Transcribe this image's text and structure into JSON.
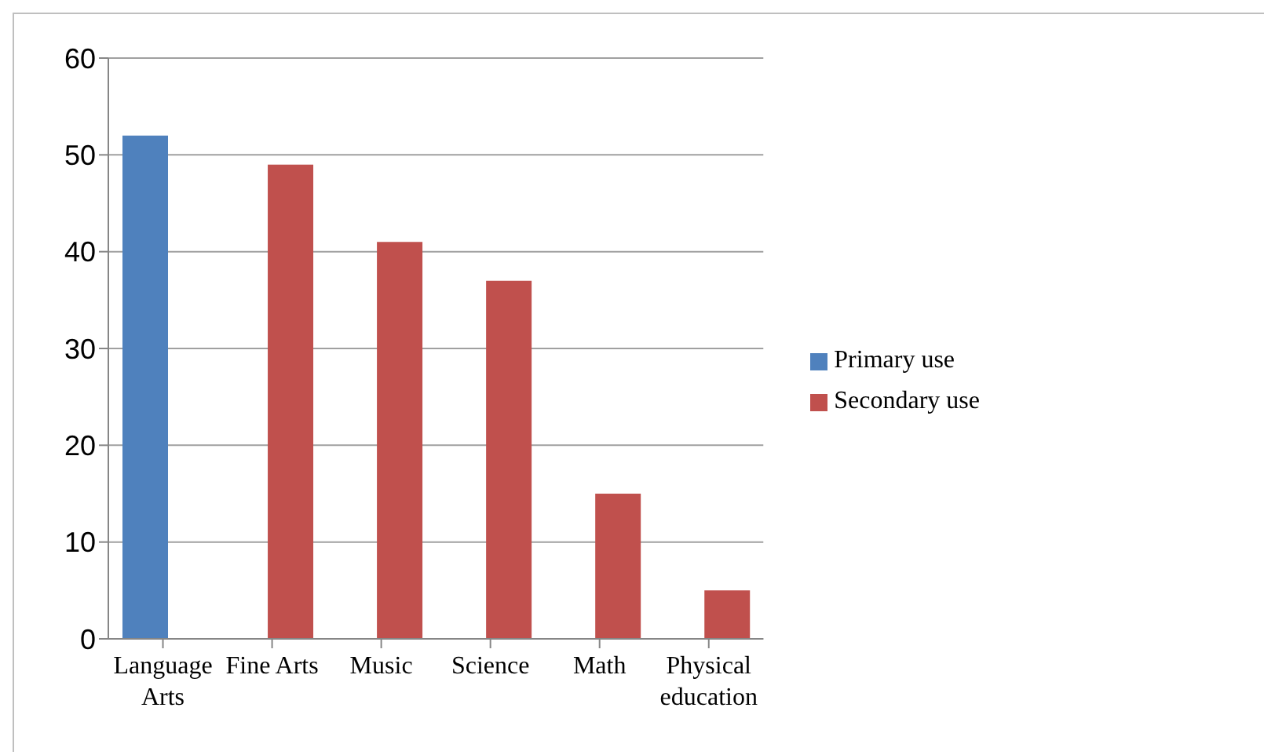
{
  "chart_data": {
    "type": "bar",
    "categories": [
      "Language Arts",
      "Fine Arts",
      "Music",
      "Science",
      "Math",
      "Physical education"
    ],
    "series": [
      {
        "name": "Primary use",
        "color": "#4f81bd",
        "values": [
          52,
          null,
          null,
          null,
          null,
          null
        ]
      },
      {
        "name": "Secondary use",
        "color": "#c0504d",
        "values": [
          null,
          49,
          41,
          37,
          15,
          5
        ]
      }
    ],
    "ylim": [
      0,
      60
    ],
    "yticks": [
      0,
      10,
      20,
      30,
      40,
      50,
      60
    ],
    "grid": "y",
    "legend": "right"
  }
}
